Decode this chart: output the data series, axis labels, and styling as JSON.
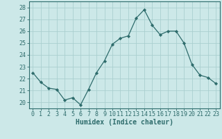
{
  "x": [
    0,
    1,
    2,
    3,
    4,
    5,
    6,
    7,
    8,
    9,
    10,
    11,
    12,
    13,
    14,
    15,
    16,
    17,
    18,
    19,
    20,
    21,
    22,
    23
  ],
  "y": [
    22.5,
    21.7,
    21.2,
    21.1,
    20.2,
    20.4,
    19.8,
    21.1,
    22.5,
    23.5,
    24.9,
    25.4,
    25.6,
    27.1,
    27.8,
    26.5,
    25.7,
    26.0,
    26.0,
    25.0,
    23.2,
    22.3,
    22.1,
    21.6
  ],
  "line_color": "#2d6b6b",
  "marker": "D",
  "marker_size": 2.2,
  "bg_color": "#cce8e8",
  "grid_color_major": "#aacfcf",
  "grid_color_minor": "#bbdddd",
  "xlabel": "Humidex (Indice chaleur)",
  "xlim": [
    -0.5,
    23.5
  ],
  "ylim": [
    19.5,
    28.5
  ],
  "yticks": [
    20,
    21,
    22,
    23,
    24,
    25,
    26,
    27,
    28
  ],
  "xticks": [
    0,
    1,
    2,
    3,
    4,
    5,
    6,
    7,
    8,
    9,
    10,
    11,
    12,
    13,
    14,
    15,
    16,
    17,
    18,
    19,
    20,
    21,
    22,
    23
  ],
  "tick_color": "#2d6b6b",
  "axis_color": "#2d6b6b",
  "font_color": "#2d6b6b",
  "label_fontsize": 7,
  "tick_fontsize": 6
}
